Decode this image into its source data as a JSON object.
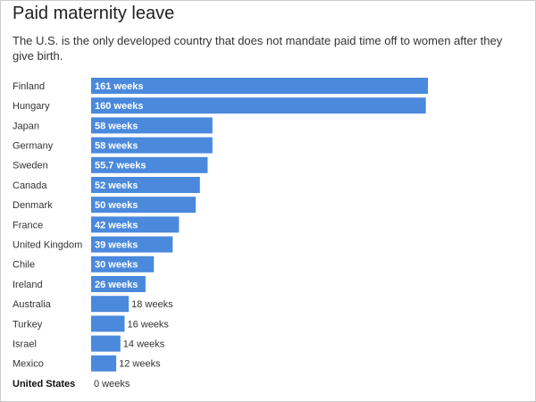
{
  "chart_data": {
    "type": "hbar",
    "title": "Paid maternity leave",
    "subtitle": "The U.S. is the only developed country that does not mandate paid time off to women after they give birth.",
    "categories": [
      "Finland",
      "Hungary",
      "Japan",
      "Germany",
      "Sweden",
      "Canada",
      "Denmark",
      "France",
      "United Kingdom",
      "Chile",
      "Ireland",
      "Australia",
      "Turkey",
      "Israel",
      "Mexico",
      "United States"
    ],
    "values": [
      161,
      160,
      58,
      58,
      55.7,
      52,
      50,
      42,
      39,
      30,
      26,
      18,
      16,
      14,
      12,
      0
    ],
    "value_labels": [
      "161 weeks",
      "160 weeks",
      "58 weeks",
      "58 weeks",
      "55.7 weeks",
      "52 weeks",
      "50 weeks",
      "42 weeks",
      "39 weeks",
      "30 weeks",
      "26 weeks",
      "18 weeks",
      "16 weeks",
      "14 weeks",
      "12 weeks",
      "0 weeks"
    ],
    "color": "#4a89dc"
  }
}
